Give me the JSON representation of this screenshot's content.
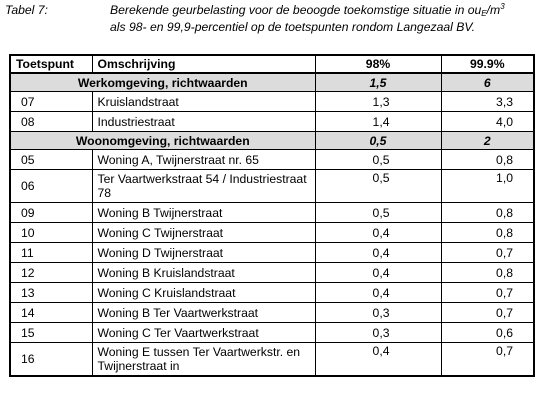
{
  "caption": {
    "label": "Tabel 7:",
    "line1_pre": "Berekende geurbelasting voor de beoogde toekomstige situatie in ou",
    "line1_sub": "E",
    "line1_mid": "/m",
    "line1_sup": "3",
    "line2": "als 98- en 99,9-percentiel op de toetspunten rondom Langezaal BV."
  },
  "table": {
    "headers": {
      "toetspunt": "Toetspunt",
      "omschrijving": "Omschrijving",
      "p98": "98%",
      "p999": "99.9%"
    },
    "groups": [
      {
        "name": "Werkomgeving, richtwaarden",
        "v98": "1,5",
        "v999": "6",
        "rows": [
          {
            "num": "07",
            "desc": "Kruislandstraat",
            "v98": "1,3",
            "v999": "3,3"
          },
          {
            "num": "08",
            "desc": "Industriestraat",
            "v98": "1,4",
            "v999": "4,0"
          }
        ]
      },
      {
        "name": "Woonomgeving, richtwaarden",
        "v98": "0,5",
        "v999": "2",
        "rows": [
          {
            "num": "05",
            "desc": "Woning A, Twijnerstraat nr. 65",
            "v98": "0,5",
            "v999": "0,8"
          },
          {
            "num": "06",
            "desc": "Ter Vaartwerkstraat 54 / Industriestraat 78",
            "v98": "0,5",
            "v999": "1,0"
          },
          {
            "num": "09",
            "desc": "Woning B Twijnerstraat",
            "v98": "0,5",
            "v999": "0,8"
          },
          {
            "num": "10",
            "desc": "Woning C Twijnerstraat",
            "v98": "0,4",
            "v999": "0,8"
          },
          {
            "num": "11",
            "desc": "Woning D Twijnerstraat",
            "v98": "0,4",
            "v999": "0,7"
          },
          {
            "num": "12",
            "desc": "Woning B Kruislandstraat",
            "v98": "0,4",
            "v999": "0,8"
          },
          {
            "num": "13",
            "desc": "Woning C Kruislandstraat",
            "v98": "0,4",
            "v999": "0,7"
          },
          {
            "num": "14",
            "desc": "Woning B Ter Vaartwerkstraat",
            "v98": "0,3",
            "v999": "0,7"
          },
          {
            "num": "15",
            "desc": "Woning C Ter Vaartwerkstraat",
            "v98": "0,3",
            "v999": "0,6"
          },
          {
            "num": "16",
            "desc": "Woning E tussen Ter Vaartwerkstr. en Twijnerstraat in",
            "v98": "0,4",
            "v999": "0,7"
          }
        ]
      }
    ]
  }
}
